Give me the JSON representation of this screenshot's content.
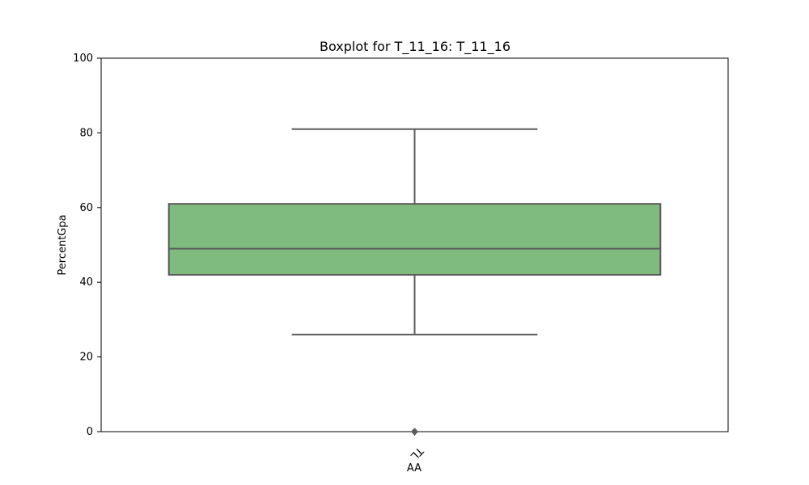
{
  "chart_data": {
    "type": "box",
    "title": "Boxplot for T_11_16: T_11_16",
    "xlabel": "AA",
    "ylabel": "PercentGpa",
    "ylim": [
      0,
      100
    ],
    "y_ticks": [
      "0",
      "20",
      "40",
      "60",
      "80",
      "100"
    ],
    "categories": [
      "TL"
    ],
    "series": [
      {
        "whisker_low": 26,
        "q1": 42,
        "median": 49,
        "q3": 61,
        "whisker_high": 81,
        "outliers": [
          0
        ]
      }
    ],
    "grid": false,
    "colors": {
      "box_fill": "#7fbb7f",
      "line": "#5b5b5b",
      "axis": "#000000"
    }
  }
}
